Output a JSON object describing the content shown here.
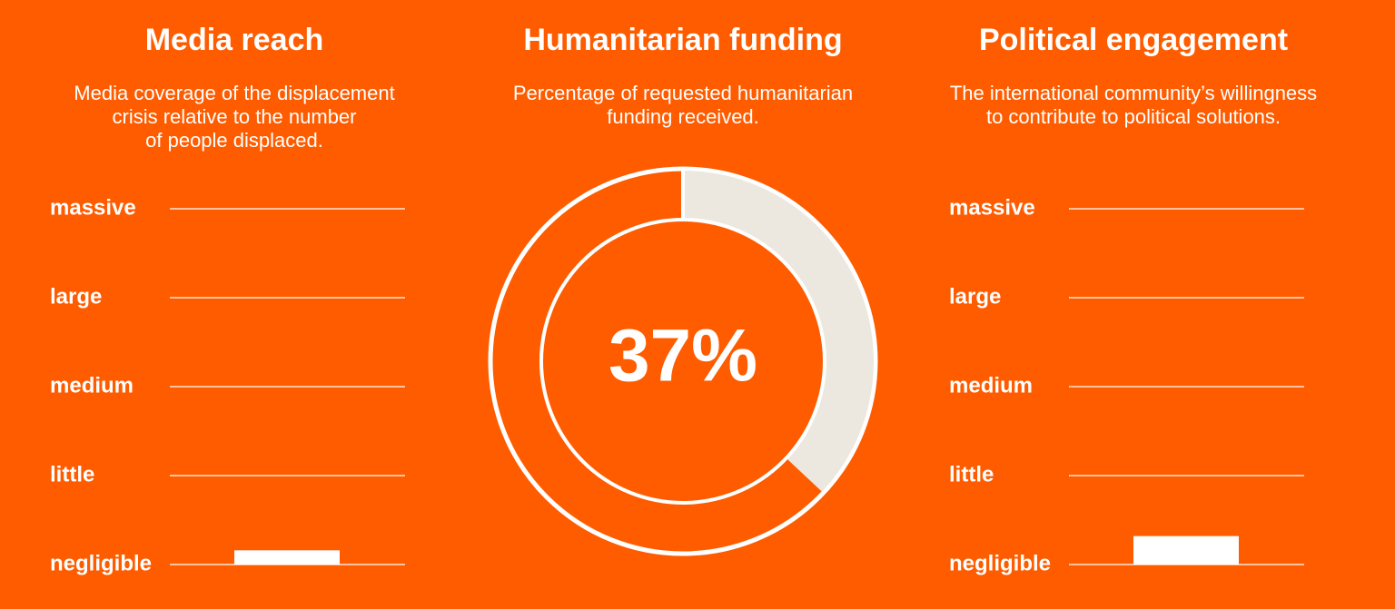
{
  "colors": {
    "background": "#ff5c00",
    "text": "#ffffff",
    "funded": "#ece8df",
    "line": "#ffffff"
  },
  "chart_data": [
    {
      "type": "bar",
      "title": "Media reach",
      "subtitle": "Media coverage of the displacement\ncrisis relative to the number\nof people displaced.",
      "levels": [
        "massive",
        "large",
        "medium",
        "little",
        "negligible"
      ],
      "value": "negligible",
      "value_fraction": 0.04,
      "grid": true
    },
    {
      "type": "pie",
      "title": "Humanitarian funding",
      "subtitle": "Percentage of requested humanitarian\nfunding received.",
      "value": 37,
      "value_label": "37%",
      "unit": "%"
    },
    {
      "type": "bar",
      "title": "Political engagement",
      "subtitle": "The international community’s willingness\nto contribute to political solutions.",
      "levels": [
        "massive",
        "large",
        "medium",
        "little",
        "negligible"
      ],
      "value": "negligible",
      "value_fraction": 0.08,
      "grid": true
    }
  ]
}
